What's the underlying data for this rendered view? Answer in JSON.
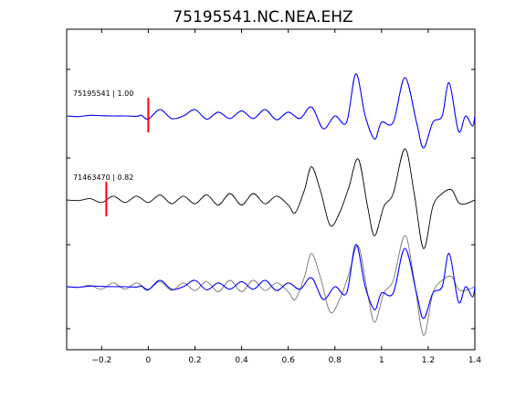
{
  "chart_data": {
    "type": "line",
    "title": "75195541.NC.NEA.EHZ",
    "xlabel": "",
    "ylabel": "",
    "xlim": [
      -0.35,
      1.4
    ],
    "xticks": [
      -0.2,
      0,
      0.2,
      0.4,
      0.6,
      0.8,
      1,
      1.2,
      1.4
    ],
    "xtick_labels": [
      "−0.2",
      "0",
      "0.2",
      "0.4",
      "0.6",
      "0.8",
      "1",
      "1.2",
      "1.4"
    ],
    "grid": false,
    "colors": {
      "blue": "#0000ff",
      "black": "#000000",
      "gray": "#777777",
      "pick": "#ff0000"
    },
    "traces": [
      {
        "label": "75195541 | 1.00",
        "color": "blue",
        "pick_time": 0.0,
        "waveform": [
          [
            -0.35,
            0
          ],
          [
            -0.3,
            -0.5
          ],
          [
            -0.25,
            0.5
          ],
          [
            -0.2,
            0.2
          ],
          [
            -0.15,
            0
          ],
          [
            -0.1,
            0
          ],
          [
            -0.05,
            -0.3
          ],
          [
            -0.03,
            0.5
          ],
          [
            0,
            -2.5
          ],
          [
            0.05,
            5
          ],
          [
            0.1,
            -2
          ],
          [
            0.15,
            0
          ],
          [
            0.2,
            5
          ],
          [
            0.25,
            -2.5
          ],
          [
            0.3,
            3
          ],
          [
            0.35,
            -2
          ],
          [
            0.4,
            4
          ],
          [
            0.45,
            -2
          ],
          [
            0.5,
            5
          ],
          [
            0.55,
            -3
          ],
          [
            0.6,
            3
          ],
          [
            0.65,
            -2
          ],
          [
            0.7,
            7
          ],
          [
            0.75,
            -10
          ],
          [
            0.8,
            0
          ],
          [
            0.85,
            -5
          ],
          [
            0.89,
            33
          ],
          [
            0.93,
            0
          ],
          [
            0.97,
            -18
          ],
          [
            1.0,
            -5
          ],
          [
            1.05,
            -5
          ],
          [
            1.1,
            30
          ],
          [
            1.15,
            -5
          ],
          [
            1.18,
            -25
          ],
          [
            1.22,
            -5
          ],
          [
            1.26,
            0
          ],
          [
            1.29,
            26
          ],
          [
            1.33,
            -12
          ],
          [
            1.36,
            0
          ],
          [
            1.39,
            -8
          ],
          [
            1.4,
            0
          ]
        ]
      },
      {
        "label": "71463470 | 0.82",
        "color": "black",
        "pick_time": -0.18,
        "waveform": [
          [
            -0.35,
            0
          ],
          [
            -0.3,
            -0.5
          ],
          [
            -0.25,
            1
          ],
          [
            -0.2,
            -2
          ],
          [
            -0.15,
            3
          ],
          [
            -0.1,
            -2
          ],
          [
            -0.05,
            3
          ],
          [
            0,
            -2
          ],
          [
            0.05,
            4
          ],
          [
            0.1,
            -3
          ],
          [
            0.15,
            3
          ],
          [
            0.2,
            -3
          ],
          [
            0.25,
            4
          ],
          [
            0.3,
            -4
          ],
          [
            0.35,
            5
          ],
          [
            0.4,
            -4
          ],
          [
            0.45,
            5
          ],
          [
            0.5,
            -3
          ],
          [
            0.55,
            3
          ],
          [
            0.6,
            -4
          ],
          [
            0.63,
            -10
          ],
          [
            0.67,
            8
          ],
          [
            0.7,
            26
          ],
          [
            0.74,
            6
          ],
          [
            0.78,
            -20
          ],
          [
            0.82,
            -10
          ],
          [
            0.86,
            10
          ],
          [
            0.9,
            32
          ],
          [
            0.94,
            -5
          ],
          [
            0.97,
            -28
          ],
          [
            1.01,
            -5
          ],
          [
            1.05,
            5
          ],
          [
            1.1,
            40
          ],
          [
            1.14,
            5
          ],
          [
            1.18,
            -38
          ],
          [
            1.22,
            -5
          ],
          [
            1.26,
            5
          ],
          [
            1.3,
            8
          ],
          [
            1.33,
            -2
          ],
          [
            1.36,
            -3
          ],
          [
            1.4,
            0
          ]
        ]
      },
      {
        "label": "",
        "color": "overlay",
        "pick_time": null,
        "waveform_blue": [
          [
            -0.35,
            0
          ],
          [
            -0.3,
            -0.5
          ],
          [
            -0.25,
            0.5
          ],
          [
            -0.2,
            0.2
          ],
          [
            -0.15,
            0
          ],
          [
            -0.1,
            0
          ],
          [
            -0.05,
            -0.3
          ],
          [
            -0.03,
            0.5
          ],
          [
            0,
            -2.5
          ],
          [
            0.05,
            5
          ],
          [
            0.1,
            -2
          ],
          [
            0.15,
            0
          ],
          [
            0.2,
            5
          ],
          [
            0.25,
            -2.5
          ],
          [
            0.3,
            3
          ],
          [
            0.35,
            -2
          ],
          [
            0.4,
            4
          ],
          [
            0.45,
            -2
          ],
          [
            0.5,
            5
          ],
          [
            0.55,
            -3
          ],
          [
            0.6,
            3
          ],
          [
            0.65,
            -2
          ],
          [
            0.7,
            7
          ],
          [
            0.75,
            -10
          ],
          [
            0.8,
            0
          ],
          [
            0.85,
            -5
          ],
          [
            0.89,
            33
          ],
          [
            0.93,
            0
          ],
          [
            0.97,
            -18
          ],
          [
            1.0,
            -5
          ],
          [
            1.05,
            -5
          ],
          [
            1.1,
            30
          ],
          [
            1.15,
            -5
          ],
          [
            1.18,
            -25
          ],
          [
            1.22,
            -5
          ],
          [
            1.26,
            0
          ],
          [
            1.29,
            26
          ],
          [
            1.33,
            -12
          ],
          [
            1.36,
            0
          ],
          [
            1.39,
            -8
          ],
          [
            1.4,
            0
          ]
        ],
        "waveform_gray": [
          [
            -0.35,
            0
          ],
          [
            -0.3,
            -0.5
          ],
          [
            -0.25,
            1
          ],
          [
            -0.2,
            -2
          ],
          [
            -0.15,
            3
          ],
          [
            -0.1,
            -2
          ],
          [
            -0.05,
            3
          ],
          [
            0,
            -2
          ],
          [
            0.05,
            4
          ],
          [
            0.1,
            -3
          ],
          [
            0.15,
            3
          ],
          [
            0.2,
            -3
          ],
          [
            0.25,
            4
          ],
          [
            0.3,
            -4
          ],
          [
            0.35,
            5
          ],
          [
            0.4,
            -4
          ],
          [
            0.45,
            5
          ],
          [
            0.5,
            -3
          ],
          [
            0.55,
            3
          ],
          [
            0.6,
            -4
          ],
          [
            0.63,
            -10
          ],
          [
            0.67,
            8
          ],
          [
            0.7,
            26
          ],
          [
            0.74,
            6
          ],
          [
            0.78,
            -20
          ],
          [
            0.82,
            -10
          ],
          [
            0.86,
            10
          ],
          [
            0.9,
            32
          ],
          [
            0.94,
            -5
          ],
          [
            0.97,
            -28
          ],
          [
            1.01,
            -5
          ],
          [
            1.05,
            5
          ],
          [
            1.1,
            40
          ],
          [
            1.14,
            5
          ],
          [
            1.18,
            -38
          ],
          [
            1.22,
            -5
          ],
          [
            1.26,
            5
          ],
          [
            1.3,
            8
          ],
          [
            1.33,
            -2
          ],
          [
            1.36,
            -3
          ],
          [
            1.4,
            0
          ]
        ]
      }
    ]
  }
}
